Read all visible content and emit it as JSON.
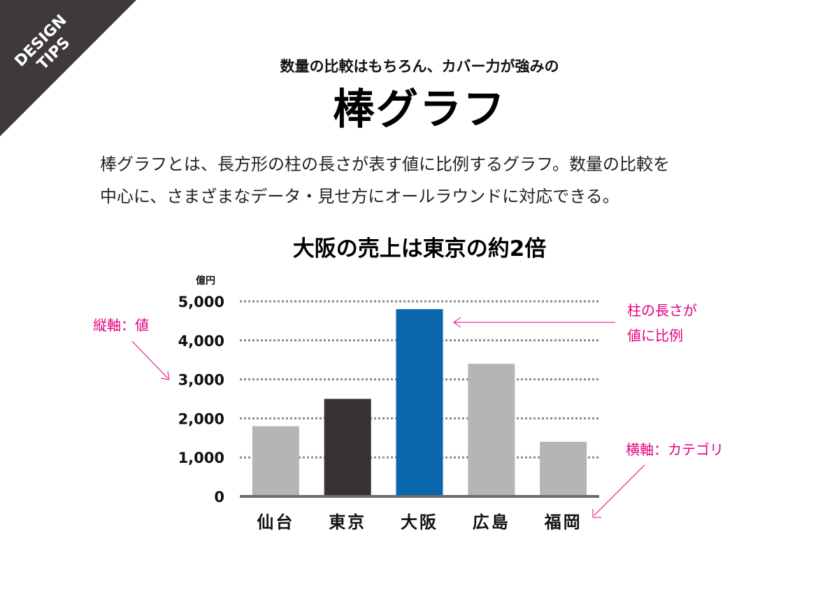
{
  "badge": {
    "line1": "DESIGN",
    "line2": "TIPS"
  },
  "header": {
    "subtitle": "数量の比較はもちろん、カバー力が強みの",
    "title": "棒グラフ"
  },
  "description": {
    "line1": "棒グラフとは、長方形の柱の長さが表す値に比例するグラフ。数量の比較を",
    "line2": "中心に、さまざまなデータ・見せ方にオールラウンドに対応できる。"
  },
  "annotations": {
    "y_axis": "縦軸：値",
    "bar_length_line1": "柱の長さが",
    "bar_length_line2": "値に比例",
    "x_axis": "横軸：カテゴリ"
  },
  "colors": {
    "annotation": "#e4007f",
    "badge": "#3e3a39",
    "grid": "#8a8a8a",
    "baseline": "#6b6b6b"
  },
  "chart_data": {
    "type": "bar",
    "title": "大阪の売上は東京の約2倍",
    "unit_label": "億円",
    "categories": [
      "仙台",
      "東京",
      "大阪",
      "広島",
      "福岡"
    ],
    "values": [
      1800,
      2500,
      4800,
      3400,
      1400
    ],
    "bar_colors": [
      "#b5b5b5",
      "#373132",
      "#0b67ab",
      "#b5b5b5",
      "#b5b5b5"
    ],
    "yticks": [
      "0",
      "1,000",
      "2,000",
      "3,000",
      "4,000",
      "5,000"
    ],
    "ylim": [
      0,
      5000
    ],
    "grid": true
  }
}
